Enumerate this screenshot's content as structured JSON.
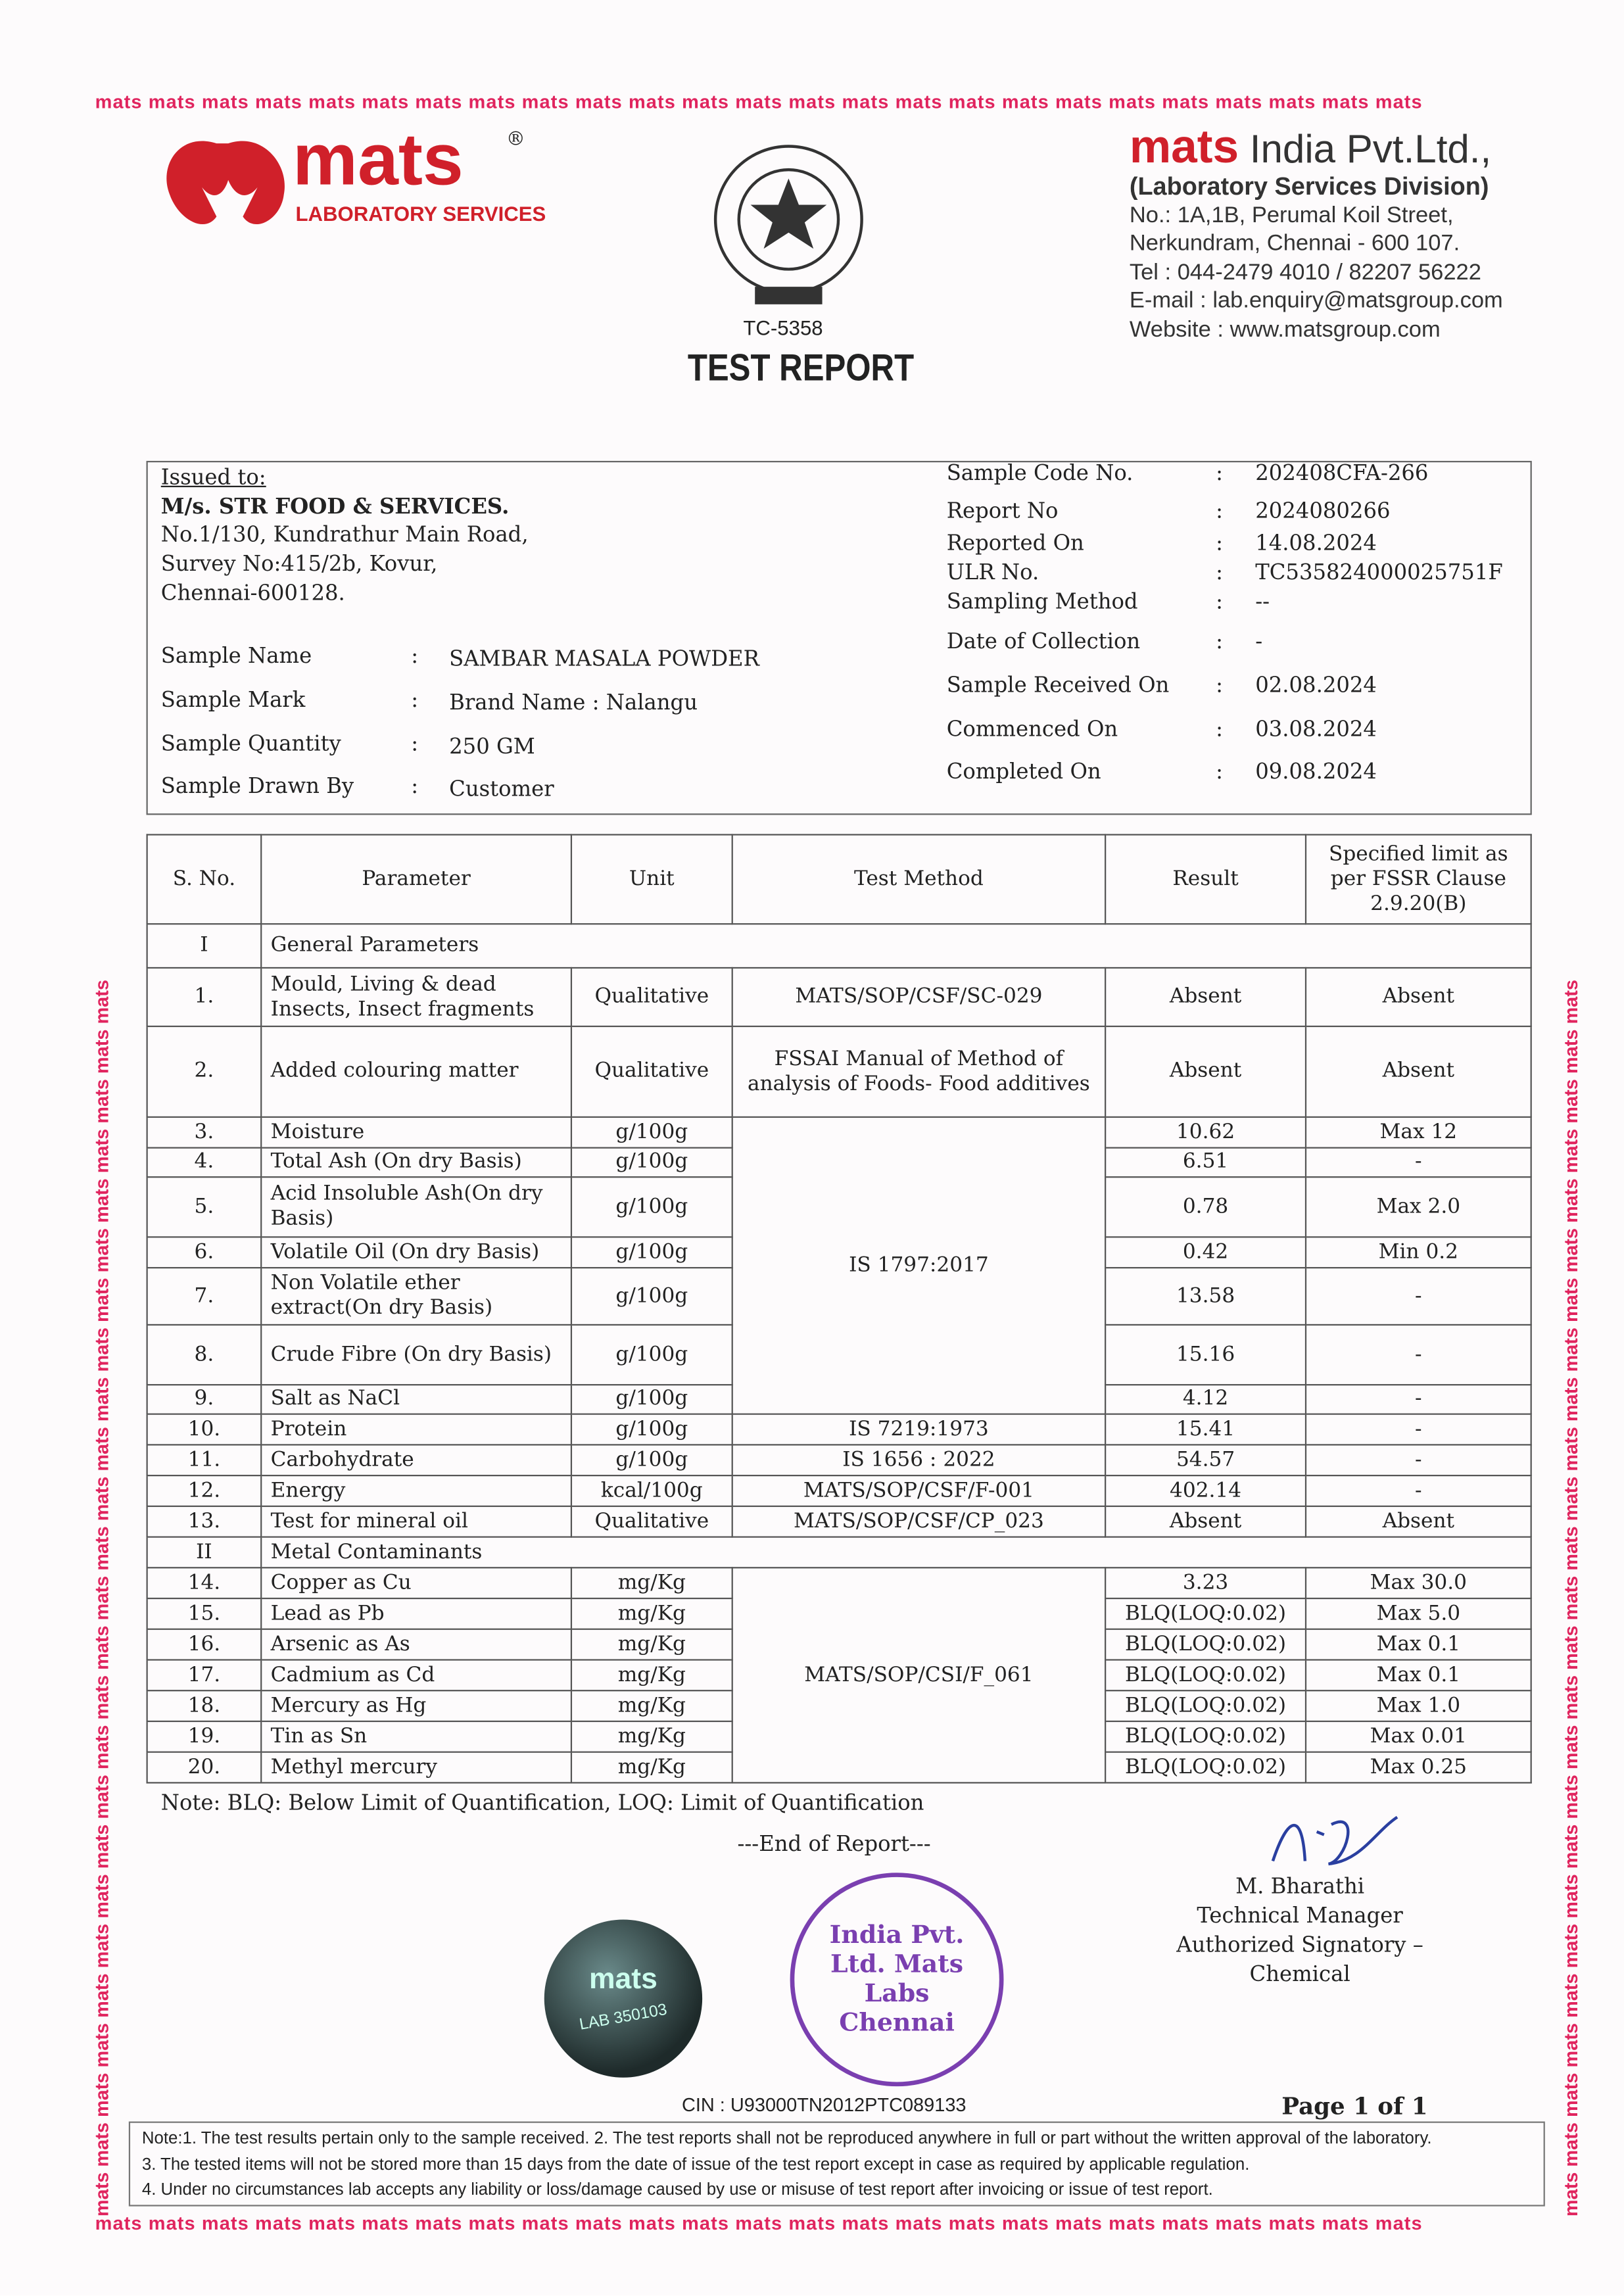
{
  "watermark": "mats",
  "border_text": "mats mats mats mats mats mats mats mats mats mats mats mats mats mats mats mats mats mats mats mats mats mats mats mats mats",
  "logo": {
    "brand": "mats",
    "registered": "®",
    "tagline": "LABORATORY SERVICES"
  },
  "accreditation": {
    "code": "TC-5358"
  },
  "title": "TEST REPORT",
  "company": {
    "brand": "mats",
    "name": "India Pvt.Ltd.,",
    "division": "(Laboratory Services Division)",
    "address1": "No.: 1A,1B, Perumal Koil Street,",
    "address2": "Nerkundram, Chennai - 600 107.",
    "tel": "Tel : 044-2479 4010 / 82207 56222",
    "email": "E-mail : lab.enquiry@matsgroup.com",
    "website": "Website : www.matsgroup.com"
  },
  "issued": {
    "label": "Issued to:",
    "name": "M/s. STR FOOD & SERVICES.",
    "addr1": "No.1/130, Kundrathur Main Road,",
    "addr2": "Survey No:415/2b, Kovur,",
    "addr3": "Chennai-600128."
  },
  "sample_left": [
    {
      "label": "Sample Name",
      "value": "SAMBAR MASALA POWDER"
    },
    {
      "label": "Sample Mark",
      "value": "Brand Name : Nalangu"
    },
    {
      "label": "Sample Quantity",
      "value": "250 GM"
    },
    {
      "label": "Sample Drawn By",
      "value": "Customer"
    }
  ],
  "sample_right": [
    {
      "label": "Sample Code No.",
      "value": "202408CFA-266"
    },
    {
      "label": "Report No",
      "value": "2024080266"
    },
    {
      "label": "Reported On",
      "value": "14.08.2024"
    },
    {
      "label": "ULR No.",
      "value": "TC535824000025751F"
    },
    {
      "label": "Sampling Method",
      "value": "--"
    },
    {
      "label": "Date of Collection",
      "value": "-"
    },
    {
      "label": "Sample Received On",
      "value": "02.08.2024"
    },
    {
      "label": "Commenced On",
      "value": "03.08.2024"
    },
    {
      "label": "Completed On",
      "value": "09.08.2024"
    }
  ],
  "colon": ":",
  "table": {
    "headers": [
      "S. No.",
      "Parameter",
      "Unit",
      "Test Method",
      "Result",
      "Specified limit as per FSSR Clause 2.9.20(B)"
    ],
    "sections": [
      {
        "no": "I",
        "label": "General Parameters"
      },
      {
        "no": "II",
        "label": "Metal Contaminants"
      }
    ],
    "rows": [
      {
        "no": "1.",
        "param": "Mould, Living & dead Insects, Insect fragments",
        "unit": "Qualitative",
        "method": "MATS/SOP/CSF/SC-029",
        "result": "Absent",
        "limit": "Absent"
      },
      {
        "no": "2.",
        "param": "Added colouring matter",
        "unit": "Qualitative",
        "method": "FSSAI Manual of Method of analysis of Foods- Food additives",
        "result": "Absent",
        "limit": "Absent"
      },
      {
        "no": "3.",
        "param": "Moisture",
        "unit": "g/100g",
        "method": "IS 1797:2017",
        "result": "10.62",
        "limit": "Max 12"
      },
      {
        "no": "4.",
        "param": "Total Ash (On dry Basis)",
        "unit": "g/100g",
        "result": "6.51",
        "limit": "-"
      },
      {
        "no": "5.",
        "param": "Acid  Insoluble Ash(On dry Basis)",
        "unit": "g/100g",
        "result": "0.78",
        "limit": "Max 2.0"
      },
      {
        "no": "6.",
        "param": "Volatile Oil (On dry Basis)",
        "unit": "g/100g",
        "result": "0.42",
        "limit": "Min 0.2"
      },
      {
        "no": "7.",
        "param": "Non Volatile ether extract(On dry Basis)",
        "unit": "g/100g",
        "result": "13.58",
        "limit": "-"
      },
      {
        "no": "8.",
        "param": "Crude Fibre (On dry Basis)",
        "unit": "g/100g",
        "result": "15.16",
        "limit": "-"
      },
      {
        "no": "9.",
        "param": "Salt as NaCl",
        "unit": "g/100g",
        "result": "4.12",
        "limit": "-"
      },
      {
        "no": "10.",
        "param": "Protein",
        "unit": "g/100g",
        "method": "IS 7219:1973",
        "result": "15.41",
        "limit": "-"
      },
      {
        "no": "11.",
        "param": "Carbohydrate",
        "unit": "g/100g",
        "method": "IS 1656 : 2022",
        "result": "54.57",
        "limit": "-"
      },
      {
        "no": "12.",
        "param": "Energy",
        "unit": "kcal/100g",
        "method": "MATS/SOP/CSF/F-001",
        "result": "402.14",
        "limit": "-"
      },
      {
        "no": "13.",
        "param": "Test for mineral oil",
        "unit": "Qualitative",
        "method": "MATS/SOP/CSF/CP_023",
        "result": "Absent",
        "limit": "Absent"
      },
      {
        "no": "14.",
        "param": "Copper as Cu",
        "unit": "mg/Kg",
        "method": "MATS/SOP/CSI/F_061",
        "result": "3.23",
        "limit": "Max 30.0"
      },
      {
        "no": "15.",
        "param": "Lead as Pb",
        "unit": "mg/Kg",
        "result": "BLQ(LOQ:0.02)",
        "limit": "Max 5.0"
      },
      {
        "no": "16.",
        "param": "Arsenic as As",
        "unit": "mg/Kg",
        "result": "BLQ(LOQ:0.02)",
        "limit": "Max 0.1"
      },
      {
        "no": "17.",
        "param": "Cadmium as Cd",
        "unit": "mg/Kg",
        "result": "BLQ(LOQ:0.02)",
        "limit": "Max 0.1"
      },
      {
        "no": "18.",
        "param": "Mercury as Hg",
        "unit": "mg/Kg",
        "result": "BLQ(LOQ:0.02)",
        "limit": "Max 1.0"
      },
      {
        "no": "19.",
        "param": "Tin as Sn",
        "unit": "mg/Kg",
        "result": "BLQ(LOQ:0.02)",
        "limit": "Max 0.01"
      },
      {
        "no": "20.",
        "param": "Methyl mercury",
        "unit": "mg/Kg",
        "result": "BLQ(LOQ:0.02)",
        "limit": "Max 0.25"
      }
    ]
  },
  "note": "Note: BLQ:  Below Limit of Quantification, LOQ:  Limit of Quantification",
  "end": "---End of Report---",
  "signatory": {
    "name": "M. Bharathi",
    "title": "Technical Manager",
    "role": "Authorized Signatory – Chemical"
  },
  "hologram": {
    "brand": "mats",
    "text": "LAB 350103"
  },
  "stamp": {
    "text": "India Pvt. Ltd. Mats Labs Chennai"
  },
  "cin": "CIN : U93000TN2012PTC089133",
  "page": "Page 1 of 1",
  "footnotes": [
    "Note:1. The test results pertain only to the sample received. 2. The test reports shall not be reproduced anywhere in full or part without the written approval of the laboratory.",
    "3. The   tested  items  will  not  be  stored  more  than  15  days  from  the  date  of  issue  of  the  test  report  except  in    case  as  required  by  applicable  regulation.",
    "4. Under no circumstances lab accepts any liability or loss/damage caused by use or misuse of test report after invoicing or issue of test report."
  ],
  "colors": {
    "brand_red": "#d0202a",
    "border_pink": "#e0245e",
    "stamp_purple": "#7a3fb0"
  }
}
